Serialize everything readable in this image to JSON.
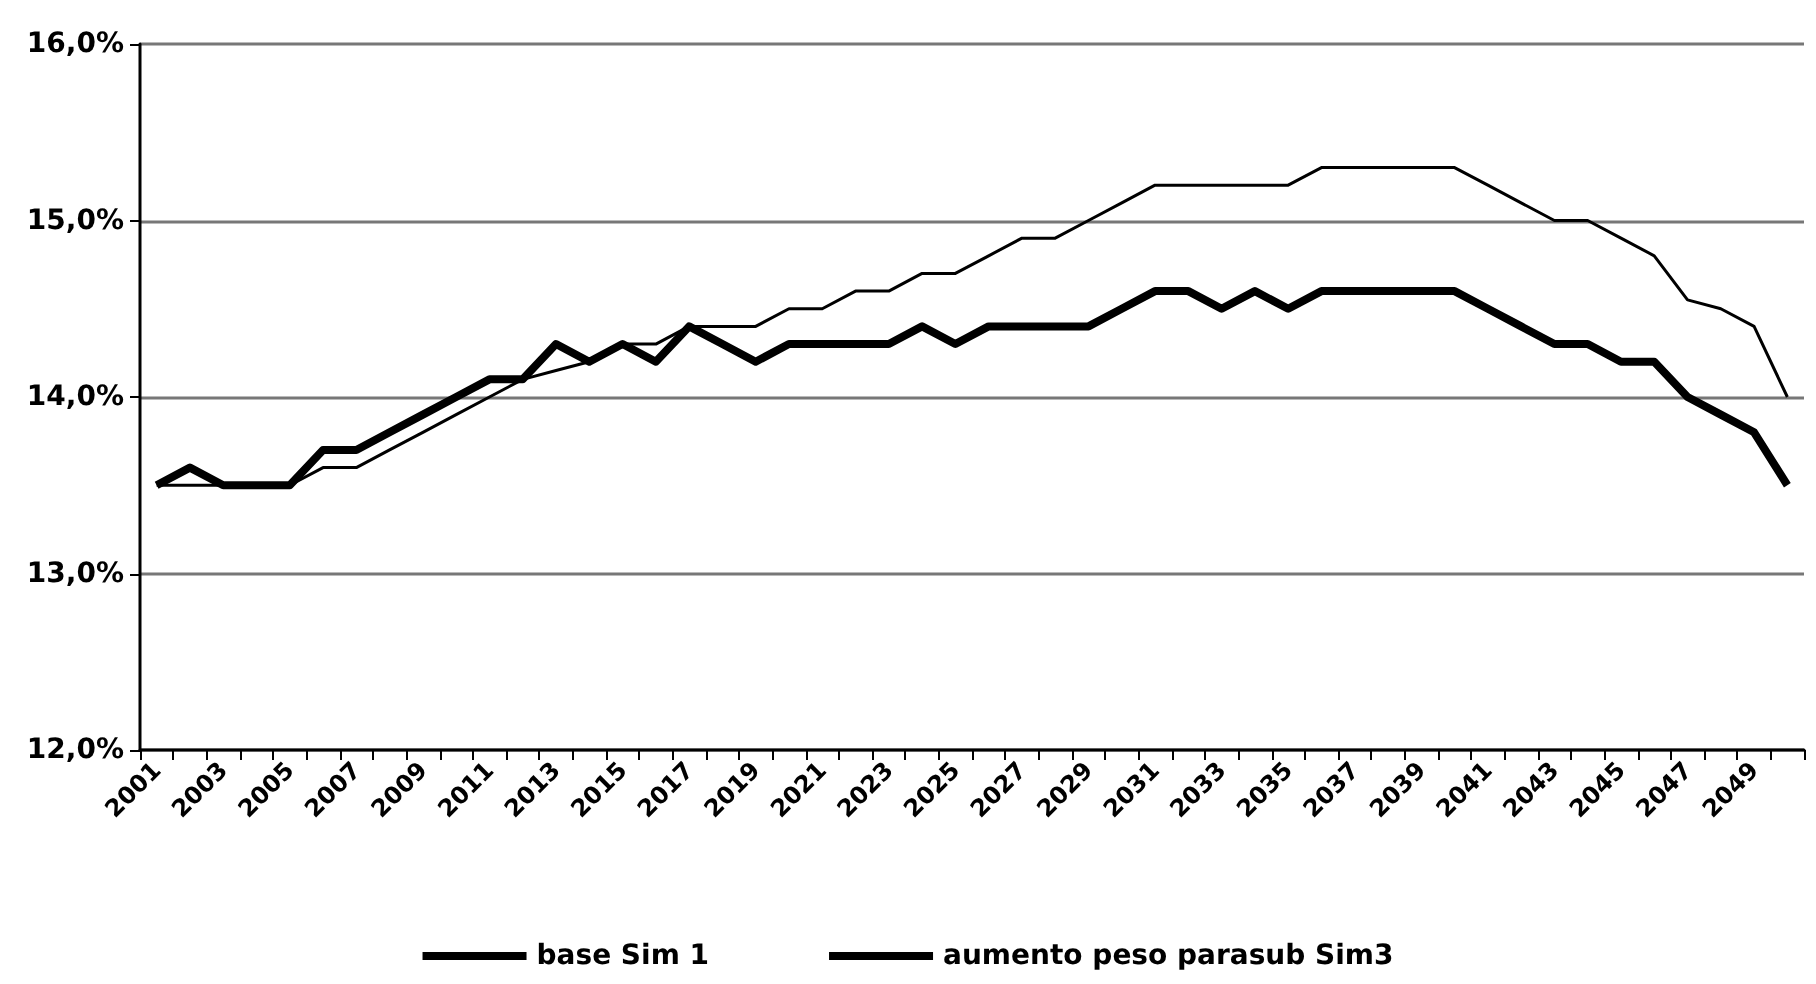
{
  "chart_data": {
    "type": "line",
    "categories": [
      "2001",
      null,
      "2003",
      null,
      "2005",
      null,
      "2007",
      null,
      "2009",
      null,
      "2011",
      null,
      "2013",
      null,
      "2015",
      null,
      "2017",
      null,
      "2019",
      null,
      "2021",
      null,
      "2023",
      null,
      "2025",
      null,
      "2027",
      null,
      "2029",
      null,
      "2031",
      null,
      "2033",
      null,
      "2035",
      null,
      "2037",
      null,
      "2039",
      null,
      "2041",
      null,
      "2043",
      null,
      "2045",
      null,
      "2047",
      null,
      "2049",
      null
    ],
    "series": [
      {
        "name": "base Sim 1",
        "color": "#000000",
        "values": [
          13.5,
          13.5,
          13.5,
          13.5,
          13.5,
          13.6,
          13.6,
          13.7,
          13.8,
          13.9,
          14.0,
          14.1,
          14.15,
          14.2,
          14.3,
          14.3,
          14.4,
          14.4,
          14.4,
          14.5,
          14.5,
          14.6,
          14.6,
          14.7,
          14.7,
          14.8,
          14.9,
          14.9,
          15.0,
          15.1,
          15.2,
          15.2,
          15.2,
          15.2,
          15.2,
          15.3,
          15.3,
          15.3,
          15.3,
          15.3,
          15.2,
          15.1,
          15.0,
          15.0,
          14.9,
          14.8,
          14.55,
          14.5,
          14.4,
          14.0
        ]
      },
      {
        "name": "aumento peso parasub Sim3",
        "color": "#000000",
        "values": [
          13.5,
          13.6,
          13.5,
          13.5,
          13.5,
          13.7,
          13.7,
          13.8,
          13.9,
          14.0,
          14.1,
          14.1,
          14.3,
          14.2,
          14.3,
          14.2,
          14.4,
          14.3,
          14.2,
          14.3,
          14.3,
          14.3,
          14.3,
          14.4,
          14.3,
          14.4,
          14.4,
          14.4,
          14.4,
          14.5,
          14.6,
          14.6,
          14.5,
          14.6,
          14.5,
          14.6,
          14.6,
          14.6,
          14.6,
          14.6,
          14.5,
          14.4,
          14.3,
          14.3,
          14.2,
          14.2,
          14.0,
          13.9,
          13.8,
          13.5
        ]
      }
    ],
    "ylim": [
      12,
      16
    ],
    "yticks": [
      {
        "value": 12,
        "label": "12,0%"
      },
      {
        "value": 13,
        "label": "13,0%"
      },
      {
        "value": 14,
        "label": "14,0%"
      },
      {
        "value": 15,
        "label": "15,0%"
      },
      {
        "value": 16,
        "label": "16,0%"
      }
    ],
    "grid": "y",
    "legend": "bottom",
    "marker": "none",
    "line_style": "solid"
  }
}
